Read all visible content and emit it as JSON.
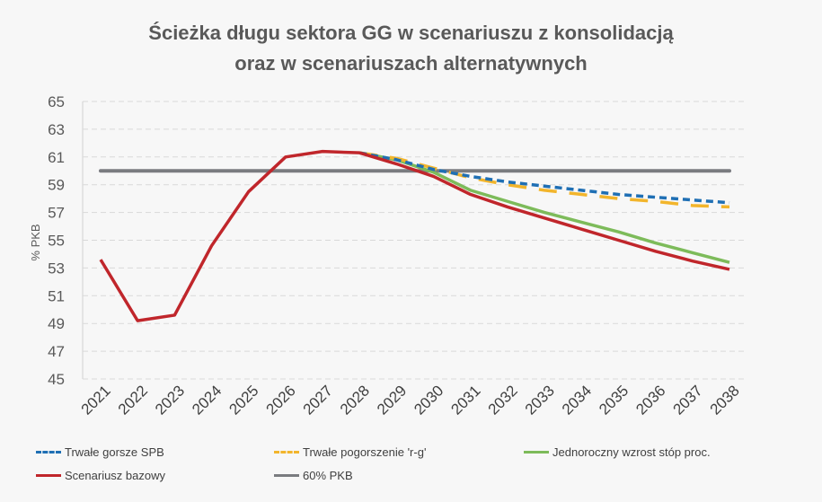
{
  "chart_data": {
    "type": "line",
    "title": [
      "Ścieżka długu sektora GG w scenariuszu z konsolidacją",
      "oraz w scenariuszach alternatywnych"
    ],
    "ylabel": "% PKB",
    "xlabel": "",
    "ylim": [
      45,
      65
    ],
    "yticks": [
      45,
      47,
      49,
      51,
      53,
      55,
      57,
      59,
      61,
      63,
      65
    ],
    "grid": true,
    "legend_position": "bottom",
    "x": [
      "2021",
      "2022",
      "2023",
      "2024",
      "2025",
      "2026",
      "2027",
      "2028",
      "2029",
      "2030",
      "2031",
      "2032",
      "2033",
      "2034",
      "2035",
      "2036",
      "2037",
      "2038"
    ],
    "series": [
      {
        "name": "Trwałe gorsze SPB",
        "color": "#1f6fb4",
        "style": "dashed",
        "values": [
          null,
          null,
          null,
          null,
          null,
          null,
          null,
          61.3,
          60.8,
          60.1,
          59.6,
          59.2,
          58.9,
          58.6,
          58.3,
          58.1,
          57.9,
          57.7
        ]
      },
      {
        "name": "Trwałe pogorszenie 'r-g'",
        "color": "#f2b52c",
        "style": "long-dash",
        "values": [
          null,
          null,
          null,
          null,
          null,
          null,
          null,
          61.3,
          60.9,
          60.2,
          59.5,
          59.0,
          58.6,
          58.3,
          58.0,
          57.8,
          57.5,
          57.4
        ]
      },
      {
        "name": "Jednoroczny wzrost stóp proc.",
        "color": "#7dbb5a",
        "style": "solid",
        "values": [
          null,
          null,
          null,
          null,
          null,
          null,
          null,
          61.3,
          60.8,
          59.9,
          58.6,
          57.8,
          57.0,
          56.3,
          55.6,
          54.8,
          54.1,
          53.4
        ]
      },
      {
        "name": "Scenariusz bazowy",
        "color": "#c0262b",
        "style": "solid",
        "values": [
          53.6,
          49.2,
          49.6,
          54.6,
          58.5,
          61.0,
          61.4,
          61.3,
          60.5,
          59.6,
          58.3,
          57.4,
          56.6,
          55.8,
          55.0,
          54.2,
          53.5,
          52.9
        ]
      },
      {
        "name": "60% PKB",
        "color": "#7a7c80",
        "style": "solid",
        "values": [
          60,
          60,
          60,
          60,
          60,
          60,
          60,
          60,
          60,
          60,
          60,
          60,
          60,
          60,
          60,
          60,
          60,
          60
        ]
      }
    ]
  }
}
